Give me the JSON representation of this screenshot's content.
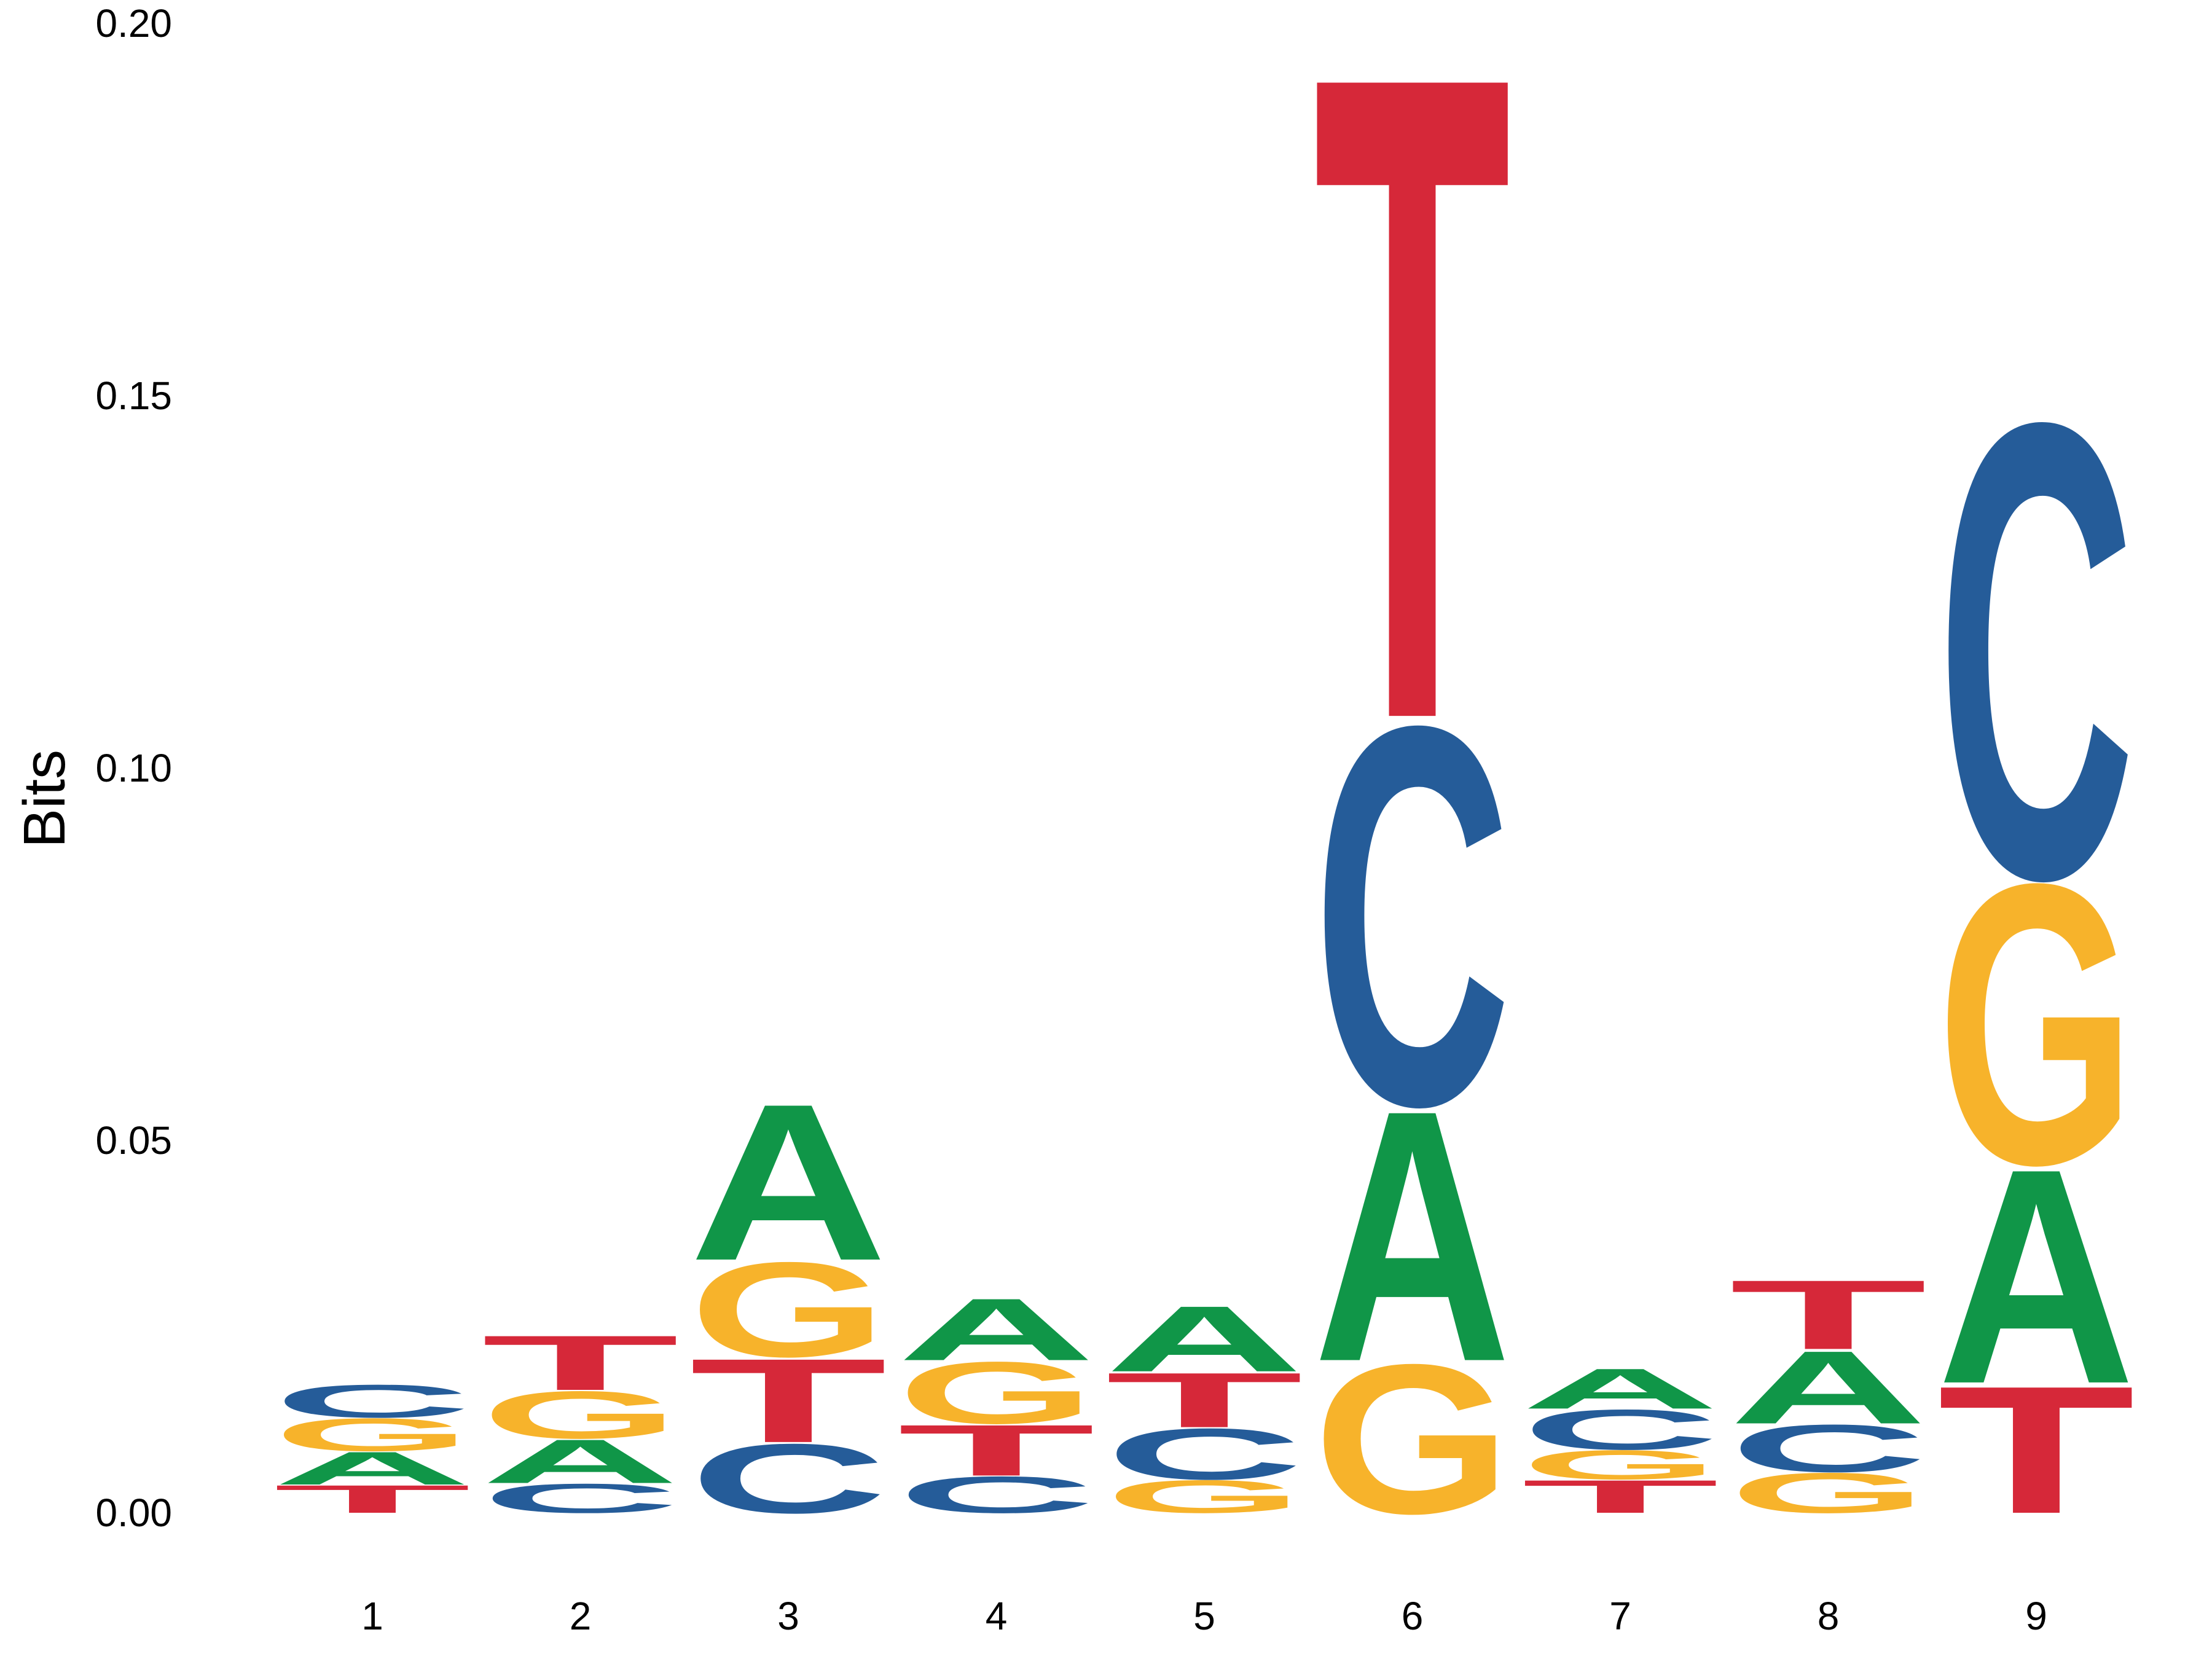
{
  "chart_data": {
    "type": "sequence-logo",
    "ylabel": "Bits",
    "ylim": [
      0,
      0.2
    ],
    "y_ticks": [
      "0.00",
      "0.05",
      "0.10",
      "0.15",
      "0.20"
    ],
    "y_tick_values": [
      0,
      0.05,
      0.1,
      0.15,
      0.2
    ],
    "positions": [
      "1",
      "2",
      "3",
      "4",
      "5",
      "6",
      "7",
      "8",
      "9"
    ],
    "colors": {
      "A": "#109648",
      "C": "#255C99",
      "G": "#F7B32B",
      "T": "#D62839"
    },
    "stacks": [
      [
        {
          "letter": "T",
          "bits": 0.0038
        },
        {
          "letter": "A",
          "bits": 0.0045
        },
        {
          "letter": "G",
          "bits": 0.0045
        },
        {
          "letter": "C",
          "bits": 0.0045
        }
      ],
      [
        {
          "letter": "C",
          "bits": 0.004
        },
        {
          "letter": "A",
          "bits": 0.006
        },
        {
          "letter": "G",
          "bits": 0.0065
        },
        {
          "letter": "T",
          "bits": 0.0075
        }
      ],
      [
        {
          "letter": "C",
          "bits": 0.0095
        },
        {
          "letter": "T",
          "bits": 0.0115
        },
        {
          "letter": "G",
          "bits": 0.013
        },
        {
          "letter": "A",
          "bits": 0.0215
        }
      ],
      [
        {
          "letter": "C",
          "bits": 0.005
        },
        {
          "letter": "T",
          "bits": 0.007
        },
        {
          "letter": "G",
          "bits": 0.0085
        },
        {
          "letter": "A",
          "bits": 0.0085
        }
      ],
      [
        {
          "letter": "G",
          "bits": 0.0045
        },
        {
          "letter": "C",
          "bits": 0.007
        },
        {
          "letter": "T",
          "bits": 0.0075
        },
        {
          "letter": "A",
          "bits": 0.009
        }
      ],
      [
        {
          "letter": "G",
          "bits": 0.0205
        },
        {
          "letter": "A",
          "bits": 0.0345
        },
        {
          "letter": "C",
          "bits": 0.052
        },
        {
          "letter": "T",
          "bits": 0.0885
        }
      ],
      [
        {
          "letter": "T",
          "bits": 0.0045
        },
        {
          "letter": "G",
          "bits": 0.004
        },
        {
          "letter": "C",
          "bits": 0.0055
        },
        {
          "letter": "A",
          "bits": 0.0055
        }
      ],
      [
        {
          "letter": "G",
          "bits": 0.0055
        },
        {
          "letter": "C",
          "bits": 0.0065
        },
        {
          "letter": "A",
          "bits": 0.01
        },
        {
          "letter": "T",
          "bits": 0.0095
        }
      ],
      [
        {
          "letter": "T",
          "bits": 0.0175
        },
        {
          "letter": "A",
          "bits": 0.0295
        },
        {
          "letter": "G",
          "bits": 0.0385
        },
        {
          "letter": "C",
          "bits": 0.0625
        }
      ]
    ]
  }
}
